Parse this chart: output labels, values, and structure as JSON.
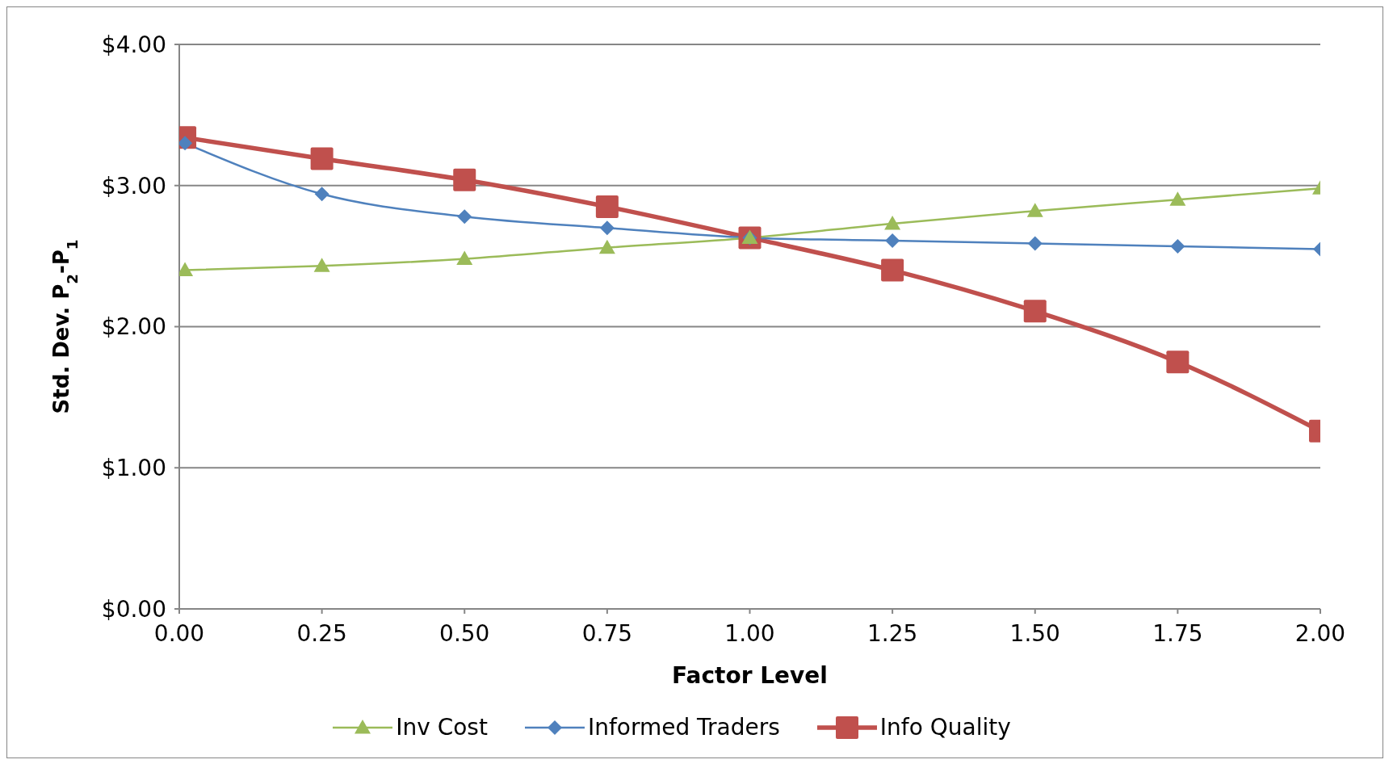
{
  "chart_data": {
    "type": "line",
    "xlabel": "Factor Level",
    "ylabel": "Std. Dev. P$_{2}$-P$_{1}$",
    "x": [
      0.01,
      0.25,
      0.5,
      0.75,
      1,
      1.25,
      1.5,
      1.75,
      2
    ],
    "series": [
      {
        "name": "Inv Cost",
        "color": "#9bbb59",
        "marker": "triangle",
        "values": [
          2.4,
          2.43,
          2.48,
          2.56,
          2.63,
          2.73,
          2.82,
          2.9,
          2.98
        ]
      },
      {
        "name": "Informed Traders",
        "color": "#4f81bd",
        "marker": "diamond",
        "values": [
          3.3,
          2.94,
          2.78,
          2.7,
          2.63,
          2.61,
          2.59,
          2.57,
          2.55
        ]
      },
      {
        "name": "Info Quality",
        "color": "#c0504d",
        "marker": "square",
        "values": [
          3.34,
          3.19,
          3.04,
          2.85,
          2.63,
          2.4,
          2.11,
          1.75,
          1.26
        ]
      }
    ],
    "xlim": [
      0,
      2
    ],
    "xticks": [
      {
        "value": 0,
        "label": "0.00"
      },
      {
        "value": 0.25,
        "label": "0.25"
      },
      {
        "value": 0.5,
        "label": "0.50"
      },
      {
        "value": 0.75,
        "label": "0.75"
      },
      {
        "value": 1,
        "label": "1.00"
      },
      {
        "value": 1.25,
        "label": "1.25"
      },
      {
        "value": 1.5,
        "label": "1.50"
      },
      {
        "value": 1.75,
        "label": "1.75"
      },
      {
        "value": 2,
        "label": "2.00"
      }
    ],
    "ylim": [
      0,
      4
    ],
    "yticks": [
      {
        "value": 0,
        "label": "$0.00"
      },
      {
        "value": 1,
        "label": "$1.00"
      },
      {
        "value": 2,
        "label": "$2.00"
      },
      {
        "value": 3,
        "label": "$3.00"
      },
      {
        "value": 4,
        "label": "$4.00"
      }
    ],
    "grid": "y",
    "legend": "bottom",
    "line_style": "solid"
  }
}
